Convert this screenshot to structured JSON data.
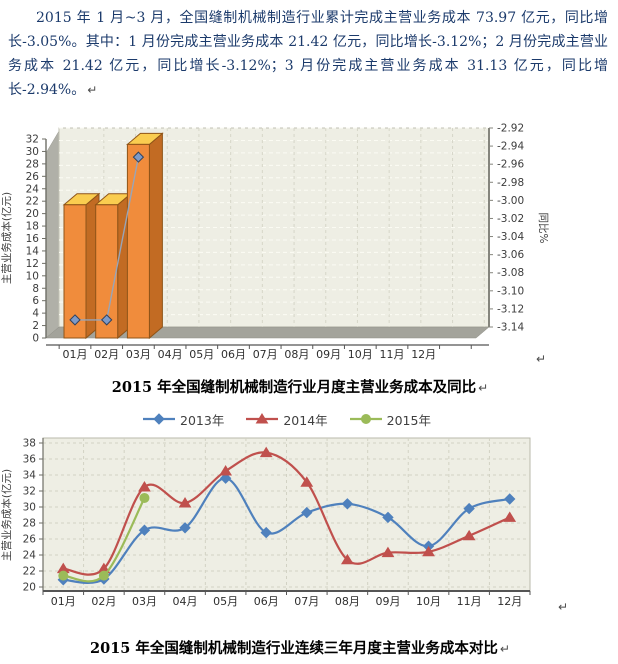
{
  "document": {
    "paragraph": "2015 年 1 月~3 月，全国缝制机械制造行业累计完成主营业务成本 73.97 亿元，同比增长-3.05%。其中：1 月份完成主营业务成本 21.42 亿元，同比增长-3.12%；2 月份完成主营业务成本 21.42 亿元，同比增长-3.12%；3 月份完成主营业务成本 31.13 亿元，同比增长-2.94%。",
    "paragraph_mark": "↵",
    "captions": {
      "chart1": "2015 年全国缝制机械制造行业月度主营业务成本及同比",
      "chart2": "2015 年全国缝制机械制造行业连续三年月度主营业务成本对比"
    },
    "text_color": "#1b3a6b"
  },
  "chart_data": [
    {
      "type": "bar",
      "subtype": "3d-bar-with-line-dual-axis",
      "title": "2015 年全国缝制机械制造行业月度主营业务成本及同比",
      "categories": [
        "01月",
        "02月",
        "03月",
        "04月",
        "05月",
        "06月",
        "07月",
        "08月",
        "09月",
        "10月",
        "11月",
        "12月"
      ],
      "bar_series": {
        "name": "主营业务成本",
        "values": [
          21.42,
          21.42,
          31.13
        ],
        "front_color": "#f08c3c",
        "top_color": "#facd50",
        "side_color": "#c26b23",
        "edge_color": "#8f5418"
      },
      "line_series": {
        "name": "同比",
        "values": [
          -3.12,
          -3.12,
          -2.94
        ],
        "line_color": "#98a5b8",
        "marker": "diamond",
        "marker_color": "#7d9ac8",
        "marker_edge": "#30425f"
      },
      "ylabel": "主营业务成本(亿元)",
      "y2label": "同比%",
      "ylim": [
        0,
        32
      ],
      "yticks": [
        0,
        2,
        4,
        6,
        8,
        10,
        12,
        14,
        16,
        18,
        20,
        22,
        24,
        26,
        28,
        30,
        32
      ],
      "y2lim": [
        -3.14,
        -2.92
      ],
      "y2ticks": [
        "-2.92",
        "-2.94",
        "-2.96",
        "-2.98",
        "-3.00",
        "-3.02",
        "-3.04",
        "-3.06",
        "-3.08",
        "-3.10",
        "-3.12",
        "-3.14"
      ],
      "grid": true,
      "plot_bg": "#eeeee4",
      "wall_color": "#b0b0a8",
      "floor_color": "#a3a39b"
    },
    {
      "type": "line",
      "title": "2015 年全国缝制机械制造行业连续三年月度主营业务成本对比",
      "categories": [
        "01月",
        "02月",
        "03月",
        "04月",
        "05月",
        "06月",
        "07月",
        "08月",
        "09月",
        "10月",
        "11月",
        "12月"
      ],
      "series": [
        {
          "name": "2013年",
          "color": "#4f81bd",
          "marker": "diamond",
          "values": [
            20.9,
            21.0,
            27.1,
            27.4,
            33.6,
            26.8,
            29.3,
            30.4,
            28.7,
            25.1,
            29.8,
            31.0
          ]
        },
        {
          "name": "2014年",
          "color": "#c0504d",
          "marker": "triangle",
          "values": [
            22.3,
            22.3,
            32.5,
            30.5,
            34.5,
            36.8,
            33.1,
            23.4,
            24.3,
            24.4,
            26.4,
            28.7
          ]
        },
        {
          "name": "2015年",
          "color": "#9bbb59",
          "marker": "circle",
          "values": [
            21.42,
            21.42,
            31.13
          ]
        }
      ],
      "ylabel": "主营业务成本(亿元)",
      "ylim": [
        20,
        38
      ],
      "yticks": [
        20,
        22,
        24,
        26,
        28,
        30,
        32,
        34,
        36,
        38
      ],
      "legend_position": "top",
      "grid": true,
      "plot_bg": "#eeeee4"
    }
  ]
}
